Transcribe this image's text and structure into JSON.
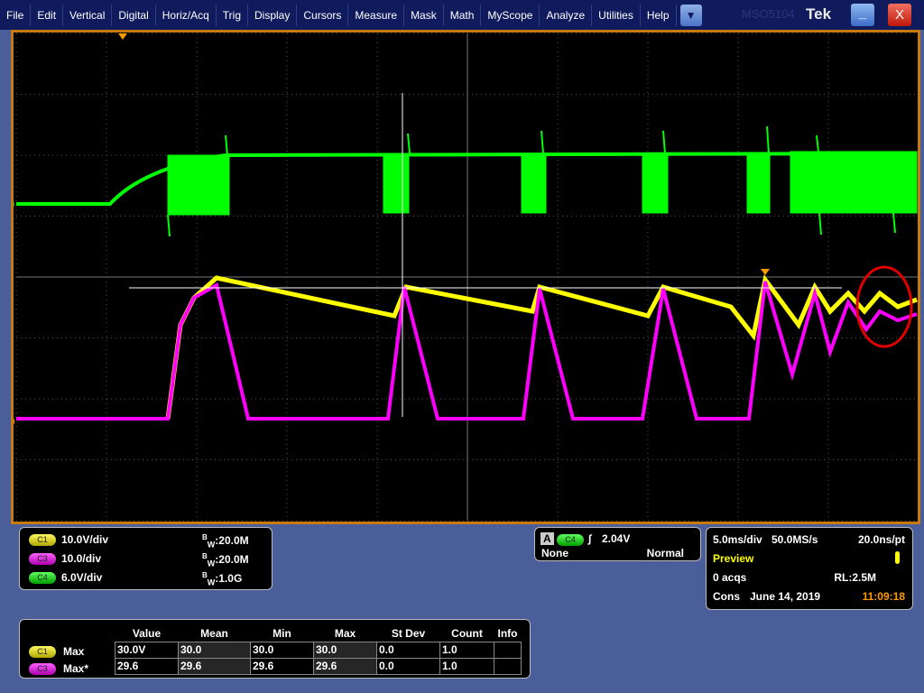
{
  "menubar": {
    "items": [
      "File",
      "Edit",
      "Vertical",
      "Digital",
      "Horiz/Acq",
      "Trig",
      "Display",
      "Cursors",
      "Measure",
      "Mask",
      "Math",
      "MyScope",
      "Analyze",
      "Utilities",
      "Help"
    ],
    "dropdown_icon": "triangle-down",
    "model": "MSO5104",
    "brand": "Tek",
    "minimize": "_",
    "close": "X"
  },
  "colors": {
    "ch1": "#ffff00",
    "ch3": "#ff00ff",
    "ch4": "#00ff00",
    "frame": "#c87a10"
  },
  "channel_markers": {
    "ch4": "4",
    "ch3": "3"
  },
  "channels": [
    {
      "label": "C1",
      "scale": "10.0V/div",
      "bw_prefix": "B",
      "bw_sub": "W",
      "bw": ":20.0M"
    },
    {
      "label": "C3",
      "scale": "10.0/div",
      "bw_prefix": "B",
      "bw_sub": "W",
      "bw": ":20.0M"
    },
    {
      "label": "C4",
      "scale": "6.0V/div",
      "bw_prefix": "B",
      "bw_sub": "W",
      "bw": ":1.0G"
    }
  ],
  "trigger": {
    "type": "A",
    "source": "C4",
    "slope": "rising",
    "level": "2.04V",
    "coupling": "None",
    "mode": "Normal"
  },
  "acquisition": {
    "timebase": "5.0ms/div",
    "sample_rate": "50.0MS/s",
    "resolution": "20.0ns/pt",
    "state": "Preview",
    "acqs": "0 acqs",
    "record_length": "RL:2.5M",
    "mode": "Cons",
    "date": "June 14, 2019",
    "time": "11:09:18"
  },
  "measurements": {
    "headers": [
      "",
      "Value",
      "Mean",
      "Min",
      "Max",
      "St Dev",
      "Count",
      "Info"
    ],
    "rows": [
      {
        "channel": "C1",
        "name": "Max",
        "cells": [
          "30.0V",
          "30.0",
          "30.0",
          "30.0",
          "0.0",
          "1.0",
          ""
        ]
      },
      {
        "channel": "C3",
        "name": "Max*",
        "cells": [
          "29.6",
          "29.6",
          "29.6",
          "29.6",
          "0.0",
          "1.0",
          ""
        ]
      }
    ]
  }
}
